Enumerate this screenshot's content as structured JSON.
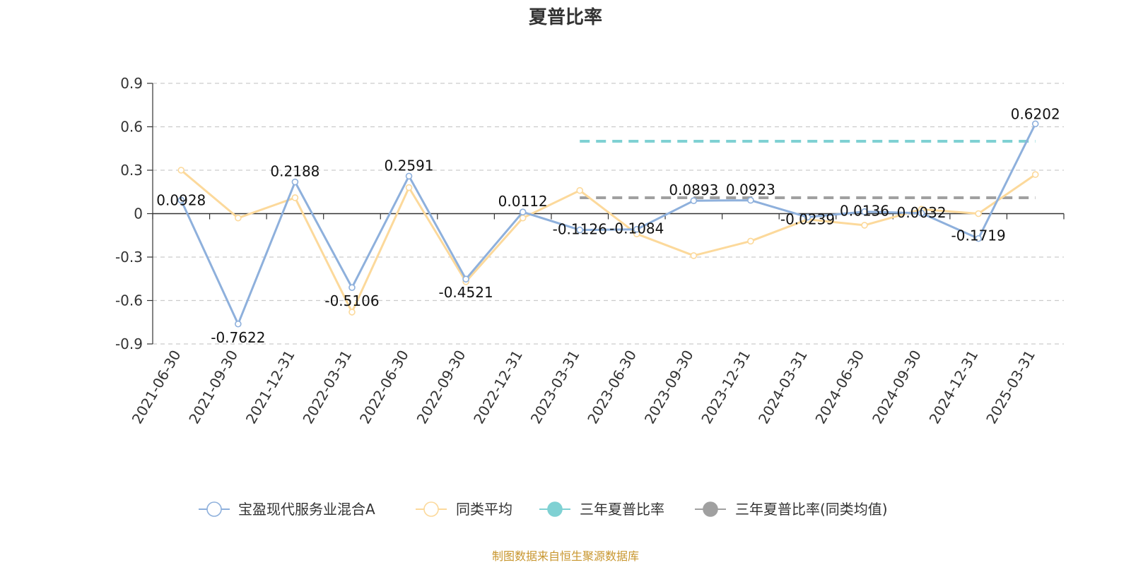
{
  "chart_data": {
    "type": "line",
    "title": "夏普比率",
    "categories": [
      "2021-06-30",
      "2021-09-30",
      "2021-12-31",
      "2022-03-31",
      "2022-06-30",
      "2022-09-30",
      "2022-12-31",
      "2023-03-31",
      "2023-06-30",
      "2023-09-30",
      "2023-12-31",
      "2024-03-31",
      "2024-06-30",
      "2024-09-30",
      "2024-12-31",
      "2025-03-31"
    ],
    "y_ticks": [
      "0.9",
      "0.6",
      "0.3",
      "0",
      "-0.3",
      "-0.6",
      "-0.9"
    ],
    "ylim": [
      -0.9,
      0.9
    ],
    "grid": true,
    "legend_position": "bottom",
    "series": [
      {
        "name": "宝盈现代服务业混合A",
        "color": "#8eb0dc",
        "values": [
          0.0928,
          -0.7622,
          0.2188,
          -0.5106,
          0.2591,
          -0.4521,
          0.0112,
          -0.1126,
          -0.1084,
          0.0893,
          0.0923,
          -0.0239,
          0.0136,
          0.0032,
          -0.1719,
          0.6202
        ],
        "labels": [
          "0.0928",
          "-0.7622",
          "0.2188",
          "-0.5106",
          "0.2591",
          "-0.4521",
          "0.0112",
          "-0.1126",
          "-0.1084",
          "0.0893",
          "0.0923",
          "-0.0239",
          "0.0136",
          "0.0032",
          "-0.1719",
          "0.6202"
        ]
      },
      {
        "name": "同类平均",
        "color": "#fcd99b",
        "values": [
          0.3,
          -0.03,
          0.11,
          -0.68,
          0.18,
          -0.47,
          -0.03,
          0.16,
          -0.14,
          -0.29,
          -0.19,
          -0.04,
          -0.08,
          0.03,
          0.0,
          0.27
        ]
      },
      {
        "name": "三年夏普比率",
        "color": "#7fd1d3",
        "value": 0.5,
        "from": "2023-03-31",
        "to": "2025-03-31"
      },
      {
        "name": "三年夏普比率(同类均值)",
        "color": "#a0a0a0",
        "value": 0.11,
        "from": "2023-03-31",
        "to": "2025-03-31"
      }
    ]
  },
  "footer": {
    "source_text": "制图数据来自恒生聚源数据库"
  }
}
